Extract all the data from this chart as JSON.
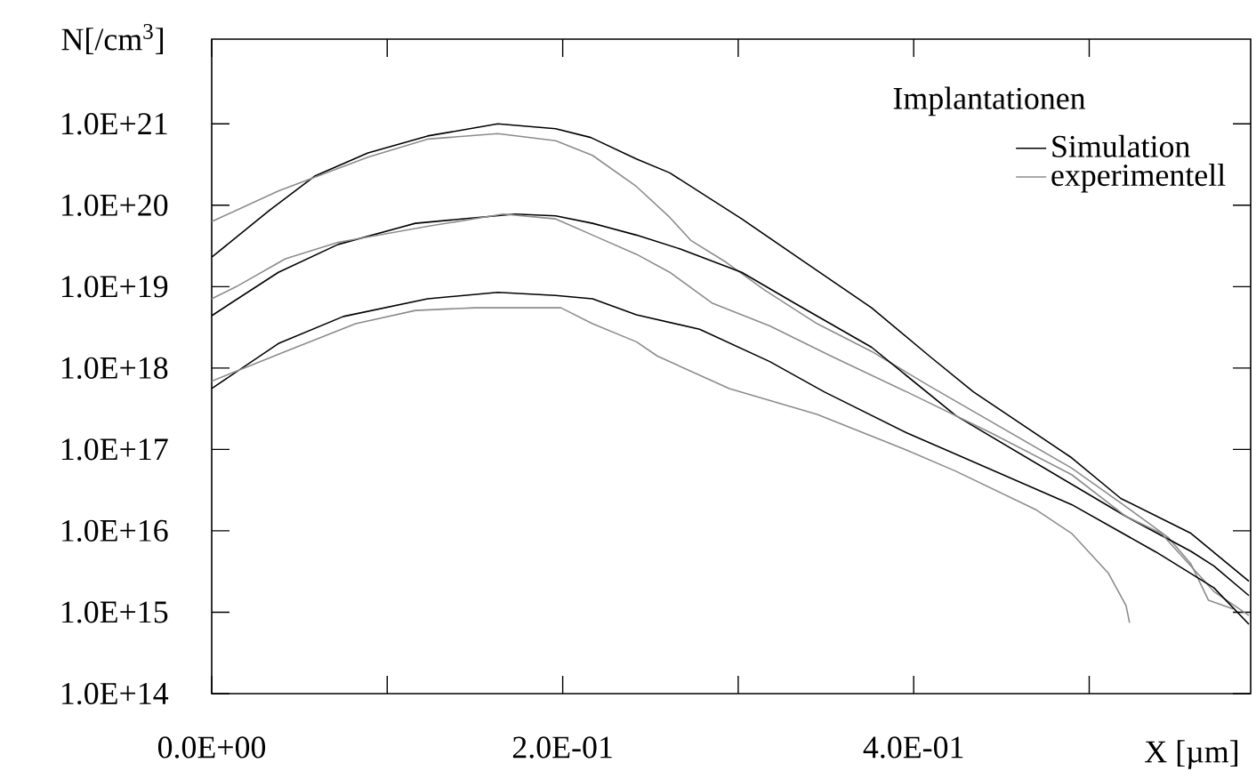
{
  "chart_data": {
    "type": "line",
    "xlabel": "X [µm]",
    "ylabel": "N[/cm$^{3}$]",
    "legend_title": "Implantationen",
    "legend": "top right",
    "log": "y",
    "marker": "none",
    "line_style": "solid",
    "xlim": [
      0,
      0.592
    ],
    "ylim": [
      100000000000000.0,
      1.1e+22
    ],
    "xticks": [
      {
        "value": 0,
        "label": "0.0E+00"
      },
      {
        "value": 0.1,
        "label": null
      },
      {
        "value": 0.2,
        "label": "2.0E-01"
      },
      {
        "value": 0.3,
        "label": null
      },
      {
        "value": 0.4,
        "label": "4.0E-01"
      },
      {
        "value": 0.5,
        "label": null
      }
    ],
    "yticks": [
      {
        "value": 100000000000000.0,
        "label": "1.0E+14"
      },
      {
        "value": 1000000000000000.0,
        "label": "1.0E+15"
      },
      {
        "value": 1e+16,
        "label": "1.0E+16"
      },
      {
        "value": 1e+17,
        "label": "1.0E+17"
      },
      {
        "value": 1e+18,
        "label": "1.0E+18"
      },
      {
        "value": 1e+19,
        "label": "1.0E+19"
      },
      {
        "value": 1e+20,
        "label": "1.0E+20"
      },
      {
        "value": 1e+21,
        "label": "1.0E+21"
      }
    ],
    "series": [
      {
        "name": "Simulation",
        "color": "#000000",
        "x": [
          0,
          0.033,
          0.059,
          0.089,
          0.123,
          0.163,
          0.196,
          0.216,
          0.242,
          0.261,
          0.302,
          0.338,
          0.376,
          0.409,
          0.434,
          0.49,
          0.518,
          0.558,
          0.591
        ],
        "values": [
          2.3e+19,
          8.7e+19,
          2.3e+20,
          4.4e+20,
          7.1e+20,
          1e+21,
          8.7e+20,
          6.8e+20,
          3.7e+20,
          2.5e+20,
          6.8e+19,
          2e+19,
          5.5e+18,
          1.4e+18,
          5.1e+17,
          7.9e+16,
          2.5e+16,
          9300000000000000.0,
          2400000000000000.0
        ]
      },
      {
        "name": "experimentell",
        "color": "#8c8c8c",
        "x": [
          0,
          0.038,
          0.089,
          0.123,
          0.163,
          0.196,
          0.217,
          0.242,
          0.261,
          0.273,
          0.293,
          0.315,
          0.345,
          0.376,
          0.409,
          0.49,
          0.518,
          0.545,
          0.558,
          0.568,
          0.582
        ],
        "values": [
          6.3e+19,
          1.5e+20,
          3.9e+20,
          6.5e+20,
          7.6e+20,
          6.2e+20,
          4.1e+20,
          1.7e+20,
          7.1e+19,
          3.7e+19,
          2e+19,
          9.1e+18,
          3.5e+18,
          1.6e+18,
          6e+17,
          5.9e+16,
          2.2e+16,
          8300000000000000.0,
          3900000000000000.0,
          1400000000000000.0,
          1100000000000000.0
        ]
      },
      {
        "color": "#000000",
        "x": [
          0,
          0.038,
          0.072,
          0.116,
          0.173,
          0.196,
          0.217,
          0.242,
          0.267,
          0.302,
          0.332,
          0.376,
          0.424,
          0.521,
          0.558,
          0.571,
          0.591
        ],
        "values": [
          4.4e+18,
          1.5e+19,
          3.3e+19,
          6e+19,
          7.8e+19,
          7.4e+19,
          6e+19,
          4.3e+19,
          2.9e+19,
          1.5e+19,
          6.3e+18,
          1.8e+18,
          2.6e+17,
          1.5e+16,
          5600000000000000.0,
          3700000000000000.0,
          1600000000000000.0
        ]
      },
      {
        "color": "#8c8c8c",
        "x": [
          0,
          0.014,
          0.042,
          0.072,
          0.123,
          0.166,
          0.196,
          0.217,
          0.242,
          0.261,
          0.285,
          0.318,
          0.353,
          0.396,
          0.444,
          0.49,
          0.521,
          0.541,
          0.571,
          0.591
        ],
        "values": [
          7.1e+18,
          1e+19,
          2.2e+19,
          3.5e+19,
          5.5e+19,
          7.8e+19,
          6.8e+19,
          4.3e+19,
          2.5e+19,
          1.5e+19,
          6.3e+18,
          3.3e+18,
          1.4e+18,
          5.1e+17,
          1.6e+17,
          4.9e+16,
          1.5e+16,
          9300000000000000.0,
          1800000000000000.0,
          910000000000000.0
        ]
      },
      {
        "color": "#000000",
        "x": [
          0,
          0.038,
          0.075,
          0.123,
          0.163,
          0.196,
          0.217,
          0.242,
          0.278,
          0.318,
          0.349,
          0.396,
          0.49,
          0.538,
          0.571,
          0.591
        ],
        "values": [
          5.6e+17,
          2e+18,
          4.3e+18,
          7.1e+18,
          8.5e+18,
          7.8e+18,
          7.1e+18,
          4.5e+18,
          3e+18,
          1.2e+18,
          5.1e+17,
          1.6e+17,
          2.1e+16,
          5500000000000000.0,
          2000000000000000.0,
          710000000000000.0
        ]
      },
      {
        "color": "#8c8c8c",
        "x": [
          0,
          0.042,
          0.082,
          0.116,
          0.15,
          0.199,
          0.217,
          0.242,
          0.254,
          0.295,
          0.345,
          0.396,
          0.424,
          0.47,
          0.49,
          0.511,
          0.521,
          0.523
        ],
        "values": [
          6.9e+17,
          1.6e+18,
          3.5e+18,
          5.1e+18,
          5.5e+18,
          5.5e+18,
          3.5e+18,
          2.1e+18,
          1.4e+18,
          5.6e+17,
          2.7e+17,
          9.8e+16,
          5.4e+16,
          1.8e+16,
          9300000000000000.0,
          3000000000000000.0,
          1200000000000000.0,
          740000000000000.0
        ]
      }
    ]
  }
}
